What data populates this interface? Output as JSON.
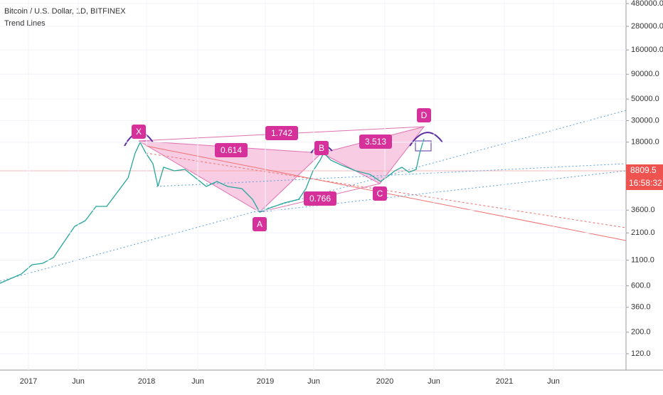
{
  "header": {
    "title": "Bitcoin / U.S. Dollar, 1D, BITFINEX",
    "indicator": "Trend Lines"
  },
  "y_axis": {
    "ticks": [
      {
        "value": 480000,
        "label": "480000.0"
      },
      {
        "value": 280000,
        "label": "280000.0"
      },
      {
        "value": 160000,
        "label": "160000.0"
      },
      {
        "value": 90000,
        "label": "90000.0"
      },
      {
        "value": 50000,
        "label": "50000.0"
      },
      {
        "value": 30000,
        "label": "30000.0"
      },
      {
        "value": 18000,
        "label": "18000.0"
      },
      {
        "value": 3600,
        "label": "3600.0"
      },
      {
        "value": 2100,
        "label": "2100.0"
      },
      {
        "value": 1100,
        "label": "1100.0"
      },
      {
        "value": 600,
        "label": "600.0"
      },
      {
        "value": 360,
        "label": "360.0"
      },
      {
        "value": 200,
        "label": "200.0"
      },
      {
        "value": 120,
        "label": "120.0"
      }
    ],
    "last_price": {
      "value": 8809.5,
      "label": "8809.5"
    },
    "countdown": "16:58:32"
  },
  "x_axis": {
    "labels": [
      "2017",
      "Jun",
      "2018",
      "Jun",
      "2019",
      "Jun",
      "2020",
      "Jun",
      "2021",
      "Jun"
    ]
  },
  "pattern": {
    "points": [
      "X",
      "A",
      "B",
      "C",
      "D"
    ],
    "ratios": [
      "0.614",
      "1.742",
      "3.513",
      "0.766"
    ]
  }
}
